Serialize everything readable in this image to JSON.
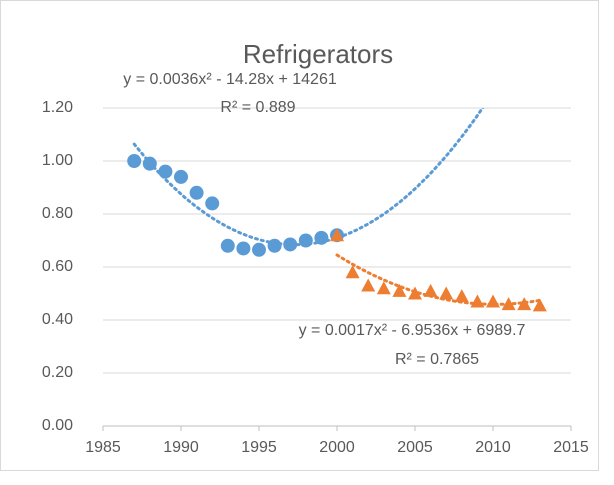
{
  "chart_data": {
    "type": "scatter",
    "title": "Refrigerators",
    "xlim": [
      1985,
      2015
    ],
    "xticks": [
      1985,
      1990,
      1995,
      2000,
      2005,
      2010,
      2015
    ],
    "ylim": [
      0,
      1.2
    ],
    "yticks": [
      {
        "value": 0,
        "label": "0.00"
      },
      {
        "value": 0.2,
        "label": "0.20"
      },
      {
        "value": 0.4,
        "label": "0.40"
      },
      {
        "value": 0.6,
        "label": "0.60"
      },
      {
        "value": 0.8,
        "label": "0.80"
      },
      {
        "value": 1.0,
        "label": "1.00"
      },
      {
        "value": 1.2,
        "label": "1.20"
      }
    ],
    "grid": true,
    "series": [
      {
        "color": "#5b9bd5",
        "marker": "circle",
        "x": [
          1987,
          1988,
          1989,
          1990,
          1991,
          1992,
          1993,
          1994,
          1995,
          1996,
          1997,
          1998,
          1999,
          2000
        ],
        "values": [
          1.0,
          0.99,
          0.96,
          0.94,
          0.88,
          0.84,
          0.68,
          0.67,
          0.665,
          0.68,
          0.685,
          0.7,
          0.71,
          0.72
        ],
        "trendline": {
          "order": 2,
          "forward": 10,
          "equation": "y = 0.0036x² - 14.28x + 14261",
          "r2": "R² = 0.889"
        }
      },
      {
        "color": "#ed7d31",
        "marker": "triangle",
        "x": [
          2000,
          2001,
          2002,
          2003,
          2004,
          2005,
          2006,
          2007,
          2008,
          2009,
          2010,
          2011,
          2012,
          2013
        ],
        "values": [
          0.72,
          0.58,
          0.53,
          0.52,
          0.51,
          0.5,
          0.51,
          0.5,
          0.49,
          0.47,
          0.47,
          0.46,
          0.46,
          0.455
        ],
        "trendline": {
          "order": 2,
          "forward": 0,
          "equation": "y = 0.0017x² - 6.9536x + 6989.7",
          "r2": "R² = 0.7865"
        }
      }
    ]
  }
}
